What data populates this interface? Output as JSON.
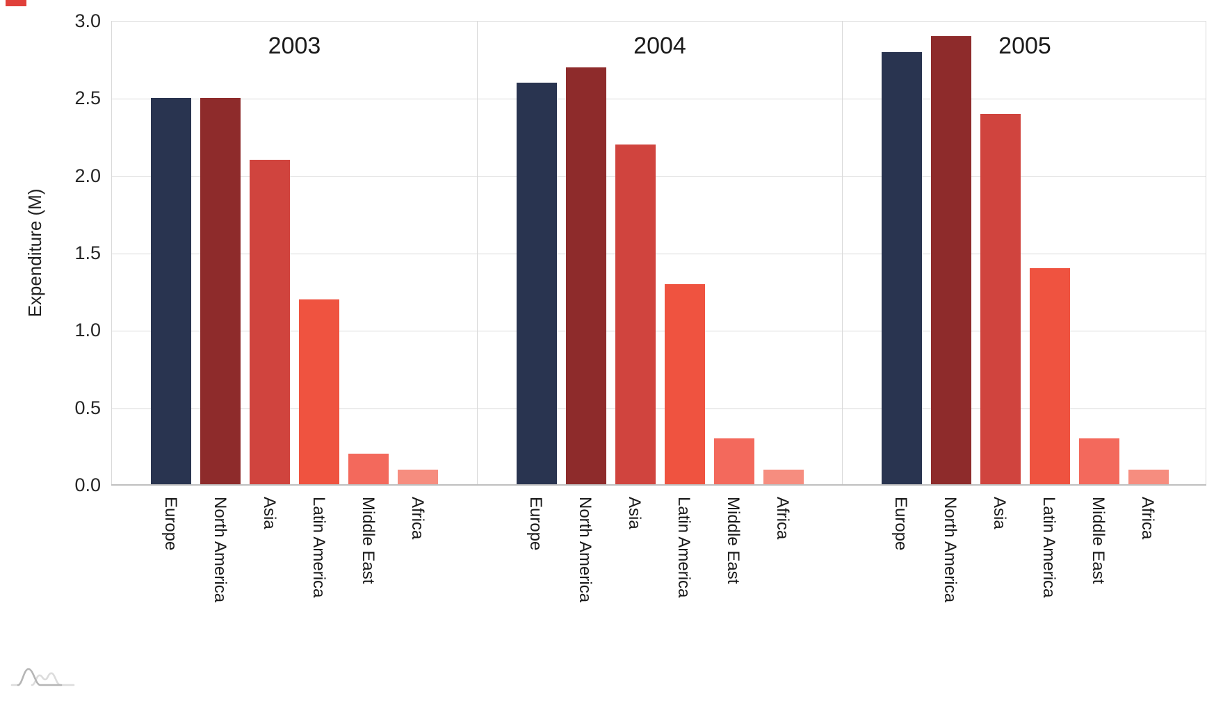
{
  "chart_data": {
    "type": "bar",
    "title": "",
    "ylabel": "Expenditure (M)",
    "xlabel": "",
    "ylim": [
      0.0,
      3.0
    ],
    "ytick_labels": [
      "0.0",
      "0.5",
      "1.0",
      "1.5",
      "2.0",
      "2.5",
      "3.0"
    ],
    "yticks": [
      0.0,
      0.5,
      1.0,
      1.5,
      2.0,
      2.5,
      3.0
    ],
    "grid": "horizontal",
    "legend": "none",
    "categories": [
      "Europe",
      "North America",
      "Asia",
      "Latin America",
      "Middle East",
      "Africa"
    ],
    "facets": [
      {
        "title": "2003",
        "values": [
          2.5,
          2.5,
          2.1,
          1.2,
          0.2,
          0.1
        ]
      },
      {
        "title": "2004",
        "values": [
          2.6,
          2.7,
          2.2,
          1.3,
          0.3,
          0.1
        ]
      },
      {
        "title": "2005",
        "values": [
          2.8,
          2.9,
          2.4,
          1.4,
          0.3,
          0.1
        ]
      }
    ],
    "bar_colors": [
      "#293450",
      "#8e2b2b",
      "#d0443e",
      "#ef5340",
      "#f3695c",
      "#f68d7f"
    ]
  },
  "colors": {
    "gridline": "#d9d9d9",
    "baseline": "#bfbfbf",
    "corner_mark": "#e0403a",
    "logo_dark": "#b5b5b5",
    "logo_light": "#dcdcdc"
  },
  "icons": {
    "logo": "distribution-curves-logo"
  }
}
